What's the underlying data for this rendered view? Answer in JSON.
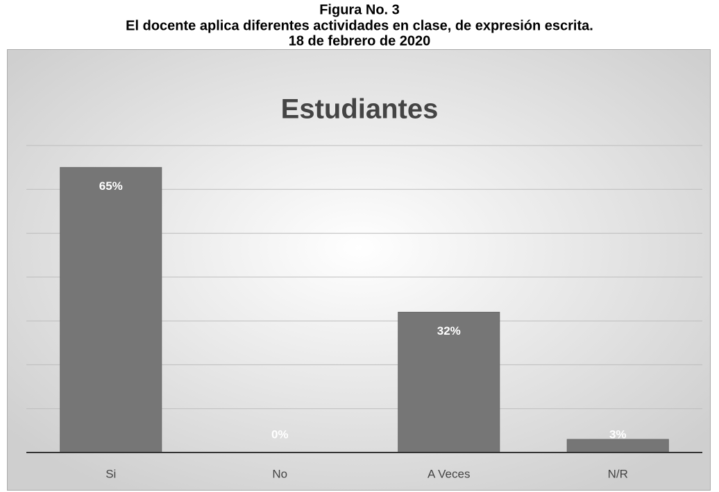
{
  "chart_data": {
    "type": "bar",
    "caption": [
      "Figura No. 3",
      "El docente aplica diferentes actividades en clase, de expresión escrita.",
      "18 de febrero de 2020"
    ],
    "title": "Estudiantes",
    "categories": [
      "Si",
      "No",
      "A Veces",
      "N/R"
    ],
    "values": [
      65,
      0,
      32,
      3
    ],
    "value_labels": [
      "65%",
      "0%",
      "32%",
      "3%"
    ],
    "color": "#767676",
    "ylim": [
      0,
      70
    ],
    "yticks": [
      0,
      10,
      20,
      30,
      40,
      50,
      60,
      70
    ],
    "grid": true
  }
}
